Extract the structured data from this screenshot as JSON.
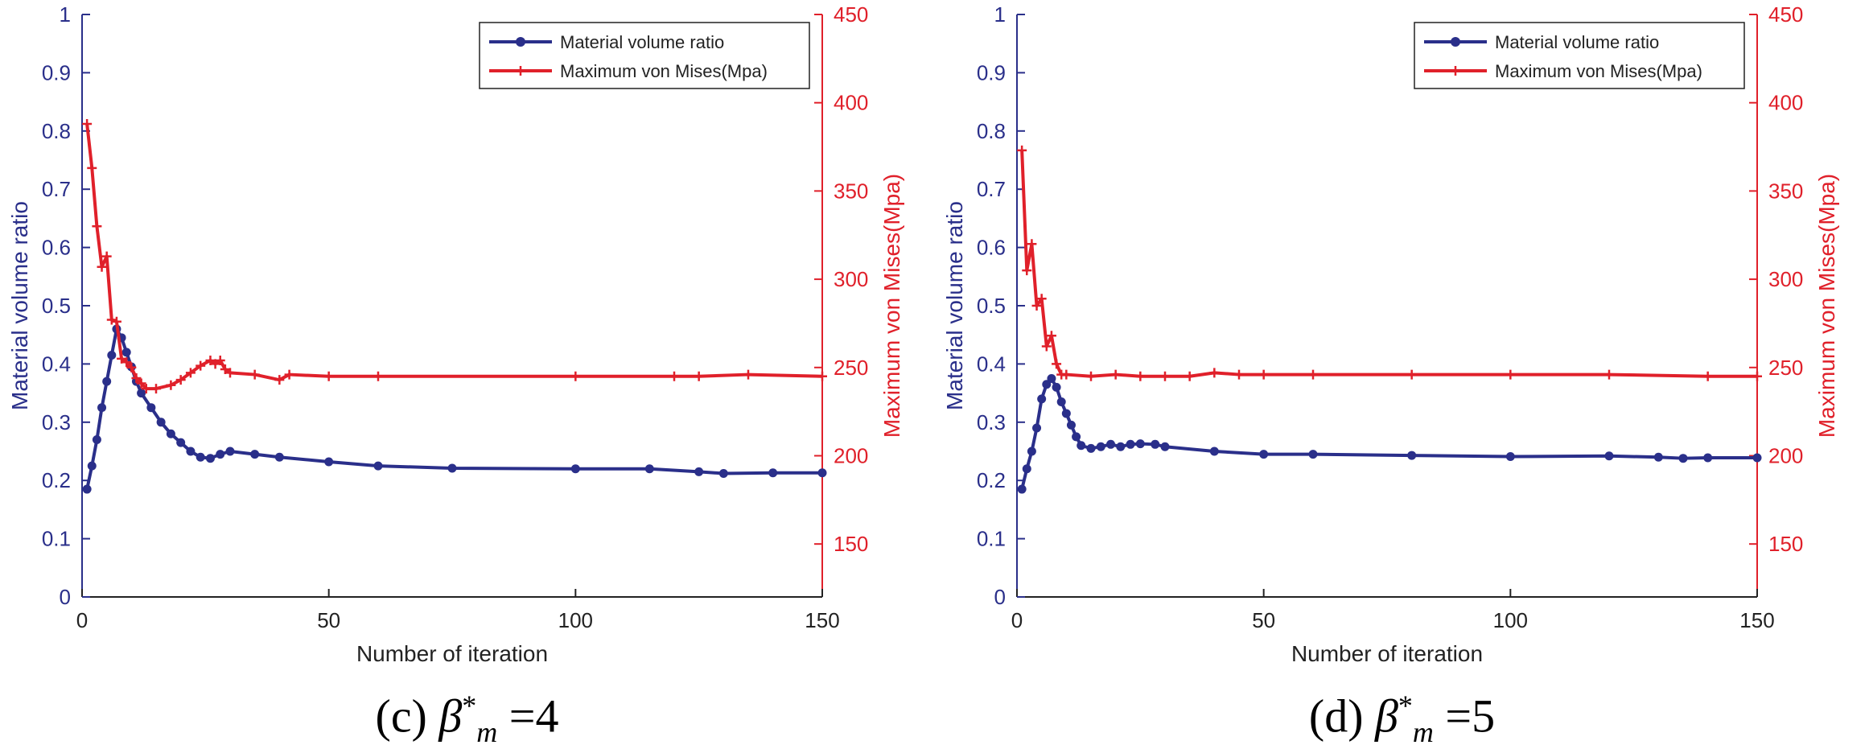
{
  "colors": {
    "left_axis": "#2a2f8a",
    "right_axis": "#e0202a",
    "series_blue": "#2a2f8a",
    "series_red": "#e0202a"
  },
  "chart_data": [
    {
      "type": "line",
      "caption": {
        "prefix": "(c) ",
        "symbol": "β",
        "sup": "*",
        "sub": "m",
        "value": " =4"
      },
      "xlabel": "Number of iteration",
      "ylabel_left": "Material volume ratio",
      "ylabel_right": "Maximum von Mises(Mpa)",
      "xlim": [
        0,
        150
      ],
      "ylim_left": [
        0,
        1
      ],
      "ylim_right": [
        120,
        450
      ],
      "x_ticks": [
        0,
        50,
        100,
        150
      ],
      "y_left_ticks": [
        0,
        0.1,
        0.2,
        0.3,
        0.4,
        0.5,
        0.6,
        0.7,
        0.8,
        0.9,
        1
      ],
      "y_right_ticks": [
        150,
        200,
        250,
        300,
        350,
        400,
        450
      ],
      "legend": [
        "Material volume ratio",
        "Maximum von Mises(Mpa)"
      ],
      "legend_position": "top-right",
      "series": [
        {
          "name": "Material volume ratio",
          "axis": "left",
          "marker": "circle",
          "points": [
            [
              1,
              0.185
            ],
            [
              2,
              0.225
            ],
            [
              3,
              0.27
            ],
            [
              4,
              0.325
            ],
            [
              5,
              0.37
            ],
            [
              6,
              0.415
            ],
            [
              7,
              0.46
            ],
            [
              8,
              0.445
            ],
            [
              9,
              0.42
            ],
            [
              10,
              0.395
            ],
            [
              11,
              0.37
            ],
            [
              12,
              0.35
            ],
            [
              14,
              0.325
            ],
            [
              16,
              0.3
            ],
            [
              18,
              0.28
            ],
            [
              20,
              0.265
            ],
            [
              22,
              0.25
            ],
            [
              24,
              0.24
            ],
            [
              26,
              0.238
            ],
            [
              28,
              0.245
            ],
            [
              30,
              0.25
            ],
            [
              35,
              0.245
            ],
            [
              40,
              0.24
            ],
            [
              50,
              0.232
            ],
            [
              60,
              0.225
            ],
            [
              75,
              0.221
            ],
            [
              100,
              0.22
            ],
            [
              115,
              0.22
            ],
            [
              125,
              0.215
            ],
            [
              130,
              0.212
            ],
            [
              140,
              0.213
            ],
            [
              150,
              0.213
            ]
          ]
        },
        {
          "name": "Maximum von Mises(Mpa)",
          "axis": "right",
          "marker": "plus",
          "points": [
            [
              1,
              388
            ],
            [
              2,
              363
            ],
            [
              3,
              330
            ],
            [
              4,
              307
            ],
            [
              5,
              313
            ],
            [
              6,
              277
            ],
            [
              7,
              276
            ],
            [
              8,
              255
            ],
            [
              9,
              253
            ],
            [
              10,
              250
            ],
            [
              11,
              244
            ],
            [
              12,
              241
            ],
            [
              13,
              238
            ],
            [
              15,
              238
            ],
            [
              18,
              240
            ],
            [
              20,
              243
            ],
            [
              22,
              247
            ],
            [
              24,
              251
            ],
            [
              26,
              254
            ],
            [
              27,
              252
            ],
            [
              28,
              254
            ],
            [
              29,
              249
            ],
            [
              30,
              247
            ],
            [
              35,
              246
            ],
            [
              40,
              243
            ],
            [
              42,
              246
            ],
            [
              50,
              245
            ],
            [
              60,
              245
            ],
            [
              100,
              245
            ],
            [
              120,
              245
            ],
            [
              125,
              245
            ],
            [
              135,
              246
            ],
            [
              150,
              245
            ]
          ]
        }
      ]
    },
    {
      "type": "line",
      "caption": {
        "prefix": "(d) ",
        "symbol": "β",
        "sup": "*",
        "sub": "m",
        "value": " =5"
      },
      "xlabel": "Number of iteration",
      "ylabel_left": "Material volume ratio",
      "ylabel_right": "Maximum von Mises(Mpa)",
      "xlim": [
        0,
        150
      ],
      "ylim_left": [
        0,
        1
      ],
      "ylim_right": [
        120,
        450
      ],
      "x_ticks": [
        0,
        50,
        100,
        150
      ],
      "y_left_ticks": [
        0,
        0.1,
        0.2,
        0.3,
        0.4,
        0.5,
        0.6,
        0.7,
        0.8,
        0.9,
        1
      ],
      "y_right_ticks": [
        150,
        200,
        250,
        300,
        350,
        400,
        450
      ],
      "legend": [
        "Material volume ratio",
        "Maximum von Mises(Mpa)"
      ],
      "legend_position": "top-right",
      "series": [
        {
          "name": "Material volume ratio",
          "axis": "left",
          "marker": "circle",
          "points": [
            [
              1,
              0.185
            ],
            [
              2,
              0.22
            ],
            [
              3,
              0.25
            ],
            [
              4,
              0.29
            ],
            [
              5,
              0.34
            ],
            [
              6,
              0.365
            ],
            [
              7,
              0.375
            ],
            [
              8,
              0.36
            ],
            [
              9,
              0.335
            ],
            [
              10,
              0.315
            ],
            [
              11,
              0.295
            ],
            [
              12,
              0.275
            ],
            [
              13,
              0.26
            ],
            [
              15,
              0.255
            ],
            [
              17,
              0.258
            ],
            [
              19,
              0.262
            ],
            [
              21,
              0.258
            ],
            [
              23,
              0.262
            ],
            [
              25,
              0.263
            ],
            [
              28,
              0.262
            ],
            [
              30,
              0.258
            ],
            [
              40,
              0.25
            ],
            [
              50,
              0.245
            ],
            [
              60,
              0.245
            ],
            [
              80,
              0.243
            ],
            [
              100,
              0.241
            ],
            [
              120,
              0.242
            ],
            [
              130,
              0.24
            ],
            [
              135,
              0.238
            ],
            [
              140,
              0.239
            ],
            [
              150,
              0.239
            ]
          ]
        },
        {
          "name": "Maximum von Mises(Mpa)",
          "axis": "right",
          "marker": "plus",
          "points": [
            [
              1,
              373
            ],
            [
              2,
              305
            ],
            [
              3,
              320
            ],
            [
              4,
              285
            ],
            [
              5,
              289
            ],
            [
              6,
              262
            ],
            [
              7,
              268
            ],
            [
              8,
              252
            ],
            [
              9,
              246
            ],
            [
              10,
              246
            ],
            [
              15,
              245
            ],
            [
              20,
              246
            ],
            [
              25,
              245
            ],
            [
              30,
              245
            ],
            [
              35,
              245
            ],
            [
              40,
              247
            ],
            [
              45,
              246
            ],
            [
              50,
              246
            ],
            [
              60,
              246
            ],
            [
              80,
              246
            ],
            [
              100,
              246
            ],
            [
              120,
              246
            ],
            [
              140,
              245
            ],
            [
              150,
              245
            ]
          ]
        }
      ]
    }
  ]
}
